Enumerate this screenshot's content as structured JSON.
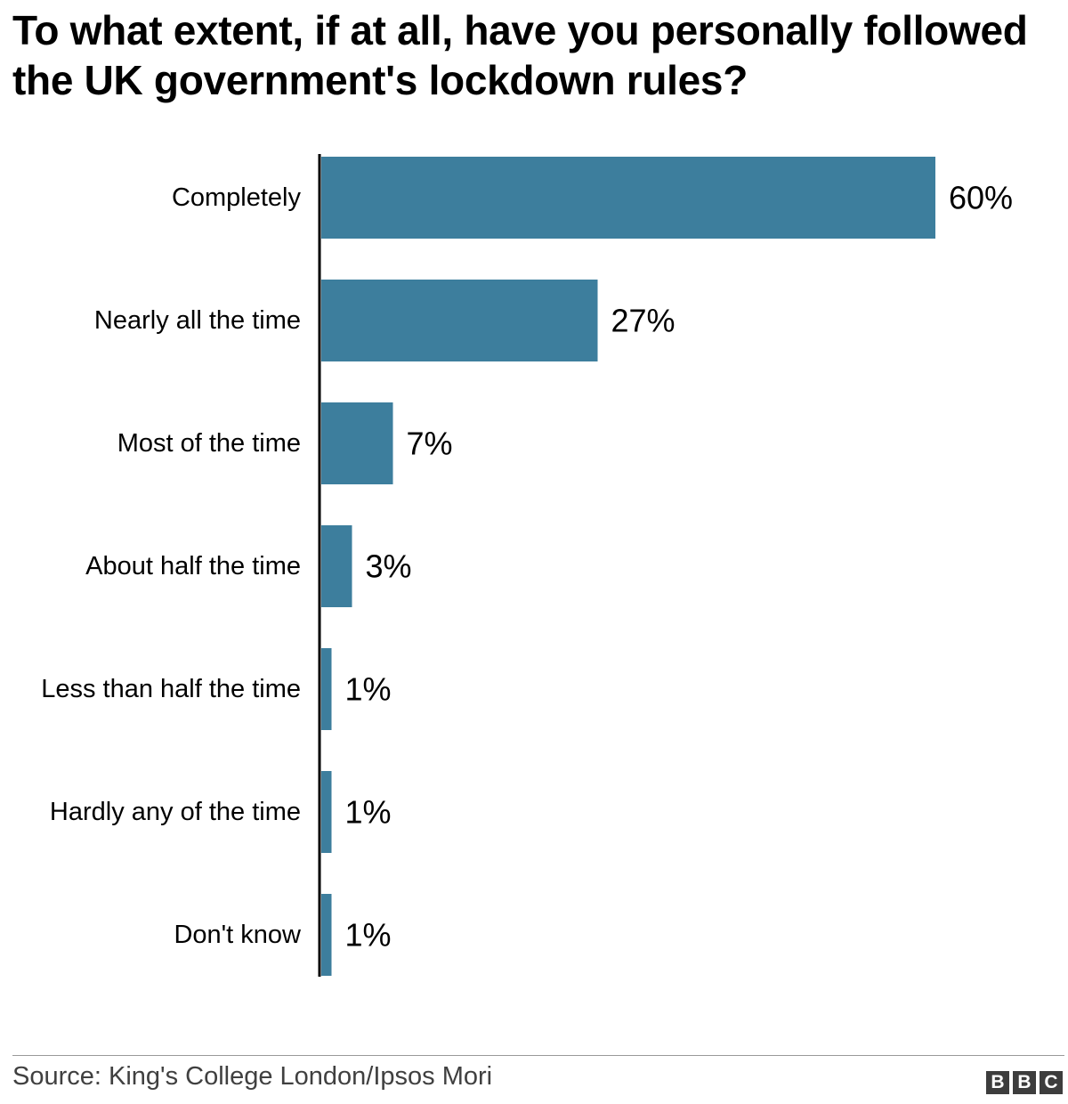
{
  "chart_data": {
    "type": "bar",
    "orientation": "horizontal",
    "title": "To what extent, if at all, have you personally followed the UK government's lockdown rules?",
    "categories": [
      "Completely",
      "Nearly all the time",
      "Most of the time",
      "About half the time",
      "Less than half the time",
      "Hardly any of the time",
      "Don't know"
    ],
    "values": [
      60,
      27,
      7,
      3,
      1,
      1,
      1
    ],
    "value_labels": [
      "60%",
      "27%",
      "7%",
      "3%",
      "1%",
      "1%",
      "1%"
    ],
    "xlim": [
      0,
      60
    ],
    "grid": false,
    "legend": "none",
    "bar_color": "#3d7e9d",
    "axis_color": "#000000"
  },
  "footer": {
    "source": "Source: King's College London/Ipsos Mori",
    "logo_letters": [
      "B",
      "B",
      "C"
    ],
    "logo_color": "#3d3d3d"
  }
}
